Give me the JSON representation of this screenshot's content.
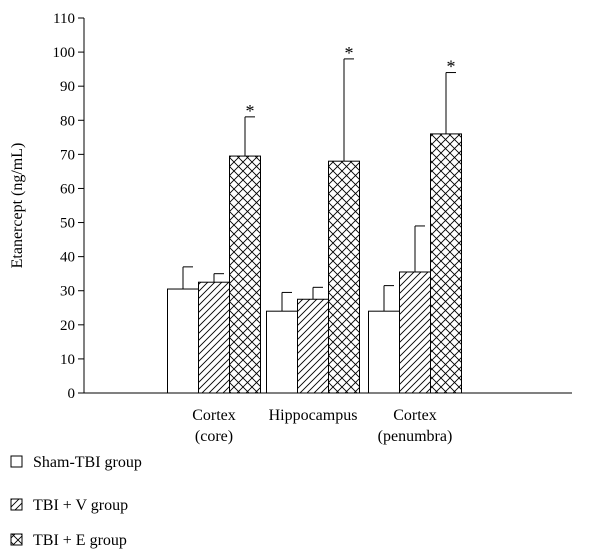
{
  "chart_data": {
    "type": "bar",
    "ylabel": "Etanercept (ng/mL)",
    "ylim": [
      0,
      110
    ],
    "yticks": [
      0,
      10,
      20,
      30,
      40,
      50,
      60,
      70,
      80,
      90,
      100,
      110
    ],
    "categories": [
      [
        "Cortex",
        "(core)"
      ],
      [
        "Hippocampus"
      ],
      [
        "Cortex",
        "(penumbra)"
      ]
    ],
    "series": [
      {
        "name": "Sham-TBI group",
        "pattern": "none",
        "values": [
          30.5,
          24,
          24
        ],
        "errors": [
          6.5,
          5.5,
          7.5
        ],
        "significance": [
          "",
          "",
          ""
        ]
      },
      {
        "name": "TBI + V group",
        "pattern": "diagonal",
        "values": [
          32.5,
          27.5,
          35.5
        ],
        "errors": [
          2.5,
          3.5,
          13.5
        ],
        "significance": [
          "",
          "",
          ""
        ]
      },
      {
        "name": "TBI + E group",
        "pattern": "crosshatch",
        "values": [
          69.5,
          68,
          76
        ],
        "errors": [
          11.5,
          30,
          18
        ],
        "significance": [
          "*",
          "*",
          "*"
        ]
      }
    ],
    "grid": false,
    "legend_position": "bottom-left"
  }
}
